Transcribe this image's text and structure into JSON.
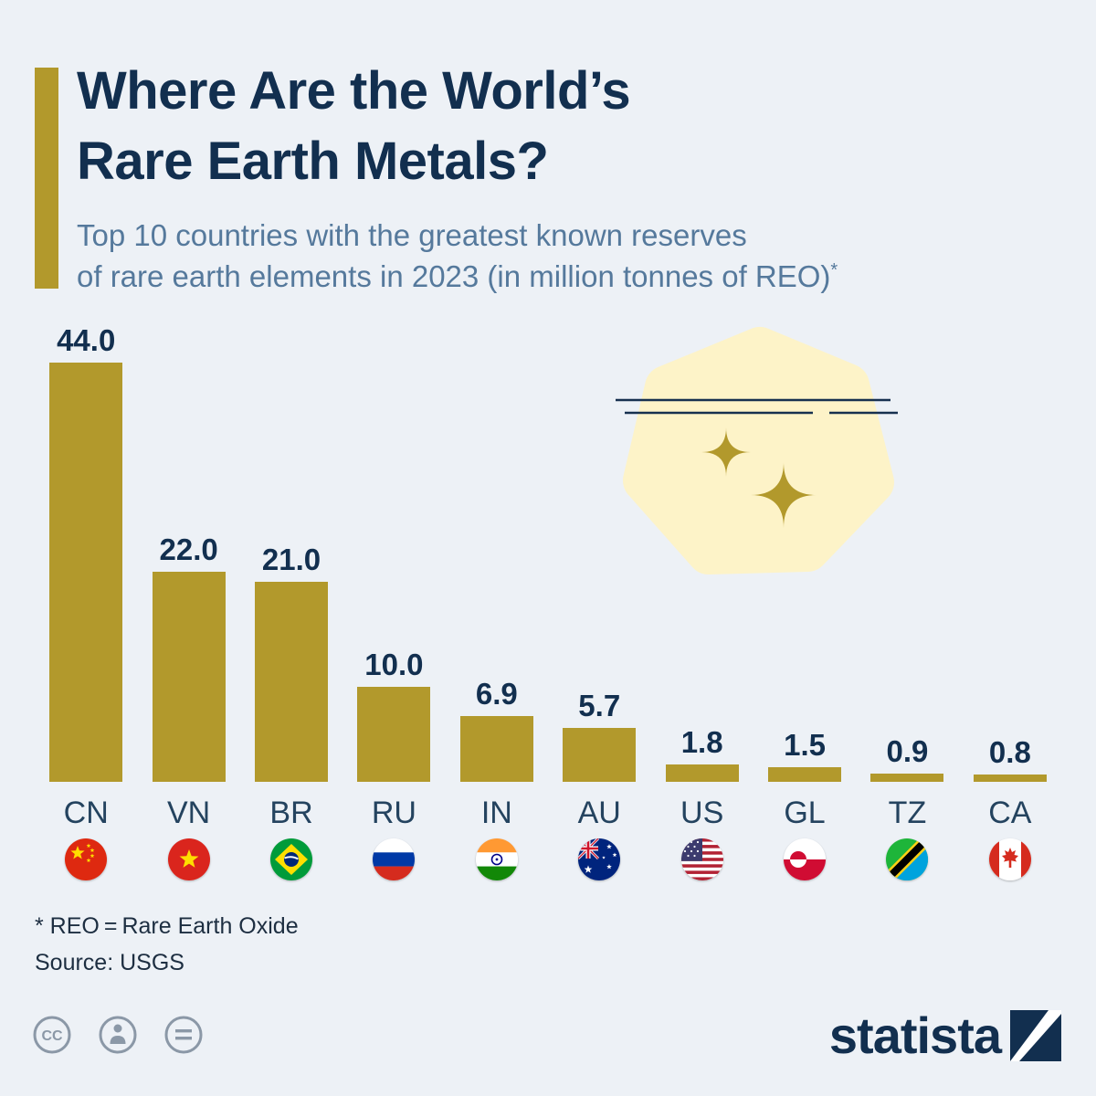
{
  "meta": {
    "background_color": "#edf1f6",
    "bar_color": "#b2992c",
    "navy_color": "#122f4f",
    "subtitle_color": "#55799c",
    "decoration_color": "#fdf3c8"
  },
  "header": {
    "title_line1": "Where Are the World’s",
    "title_line2": "Rare Earth Metals?",
    "subtitle_line1": "Top 10 countries with the greatest known reserves",
    "subtitle_line2": "of rare earth elements in 2023 (in million tonnes of REO)",
    "subtitle_superscript": "*"
  },
  "chart_data": {
    "type": "bar",
    "title": "Top 10 countries with the greatest known reserves of rare earth elements in 2023 (in million tonnes of REO)",
    "categories": [
      "CN",
      "VN",
      "BR",
      "RU",
      "IN",
      "AU",
      "US",
      "GL",
      "TZ",
      "CA"
    ],
    "values": [
      44.0,
      22.0,
      21.0,
      10.0,
      6.9,
      5.7,
      1.8,
      1.5,
      0.9,
      0.8
    ],
    "value_labels": [
      "44.0",
      "22.0",
      "21.0",
      "10.0",
      "6.9",
      "5.7",
      "1.8",
      "1.5",
      "0.9",
      "0.8"
    ],
    "flags": [
      "china",
      "vietnam",
      "brazil",
      "russia",
      "india",
      "australia",
      "usa",
      "greenland",
      "tanzania",
      "canada"
    ],
    "xlabel": "",
    "ylabel": "",
    "ylim": [
      0,
      44
    ],
    "grid": false,
    "legend": false,
    "bar_color": "#b2992c"
  },
  "footnote": {
    "line1": "* REO = Rare Earth Oxide",
    "line2": "Source: USGS"
  },
  "footer": {
    "brand": "statista",
    "license_icons": [
      "cc-icon",
      "attribution-icon",
      "no-derivatives-icon"
    ]
  }
}
